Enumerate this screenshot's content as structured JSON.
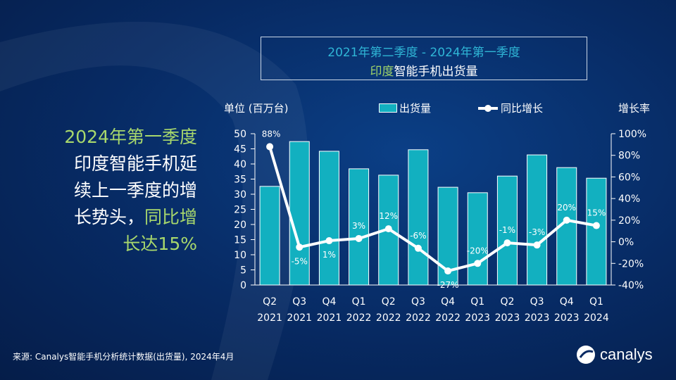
{
  "title_line1": "2021年第二季度 -  2024年第一季度",
  "title_line2_hl": "印度",
  "title_line2_rest": "智能手机出货量",
  "left_text": {
    "l1": "2024年第一季度",
    "l2": "印度智能手机延",
    "l3": "续上一季度的增",
    "l4a": "长势头，",
    "l4b": "同比增",
    "l5": "长达15%"
  },
  "source": "来源: Canalys智能手机分析统计数据(出货量), 2024年4月",
  "logo": "canalys",
  "chart_data": {
    "type": "bar+line",
    "ylabel": "单位 (百万台)",
    "y2label": "增长率",
    "ylim": [
      0,
      50
    ],
    "yticks": [
      "0",
      "5",
      "10",
      "15",
      "20",
      "25",
      "30",
      "35",
      "40",
      "45",
      "50"
    ],
    "y2lim": [
      -40,
      100
    ],
    "y2ticks": [
      "-40%",
      "-20%",
      "0%",
      "20%",
      "40%",
      "60%",
      "80%",
      "100%"
    ],
    "categories": [
      [
        "Q2",
        "2021"
      ],
      [
        "Q3",
        "2021"
      ],
      [
        "Q4",
        "2021"
      ],
      [
        "Q1",
        "2022"
      ],
      [
        "Q2",
        "2022"
      ],
      [
        "Q3",
        "2022"
      ],
      [
        "Q4",
        "2022"
      ],
      [
        "Q1",
        "2023"
      ],
      [
        "Q2",
        "2023"
      ],
      [
        "Q3",
        "2023"
      ],
      [
        "Q4",
        "2023"
      ],
      [
        "Q1",
        "2024"
      ]
    ],
    "series": [
      {
        "name": "出货量",
        "type": "bar",
        "color": "#12b0c0",
        "values": [
          32.6,
          47.4,
          44.2,
          38.4,
          36.3,
          44.7,
          32.3,
          30.5,
          36.0,
          43.0,
          38.8,
          35.3
        ]
      },
      {
        "name": "同比增长",
        "type": "line",
        "axis": "right",
        "color": "#ffffff",
        "values": [
          88,
          -5,
          1,
          3,
          12,
          -6,
          -27,
          -20,
          -1,
          -3,
          20,
          15
        ],
        "labels": [
          "88%",
          "-5%",
          "1%",
          "3%",
          "12%",
          "-6%",
          "-27%",
          "-20%",
          "-1%",
          "-3%",
          "20%",
          "15%"
        ]
      }
    ],
    "legend": "top",
    "grid": false
  }
}
